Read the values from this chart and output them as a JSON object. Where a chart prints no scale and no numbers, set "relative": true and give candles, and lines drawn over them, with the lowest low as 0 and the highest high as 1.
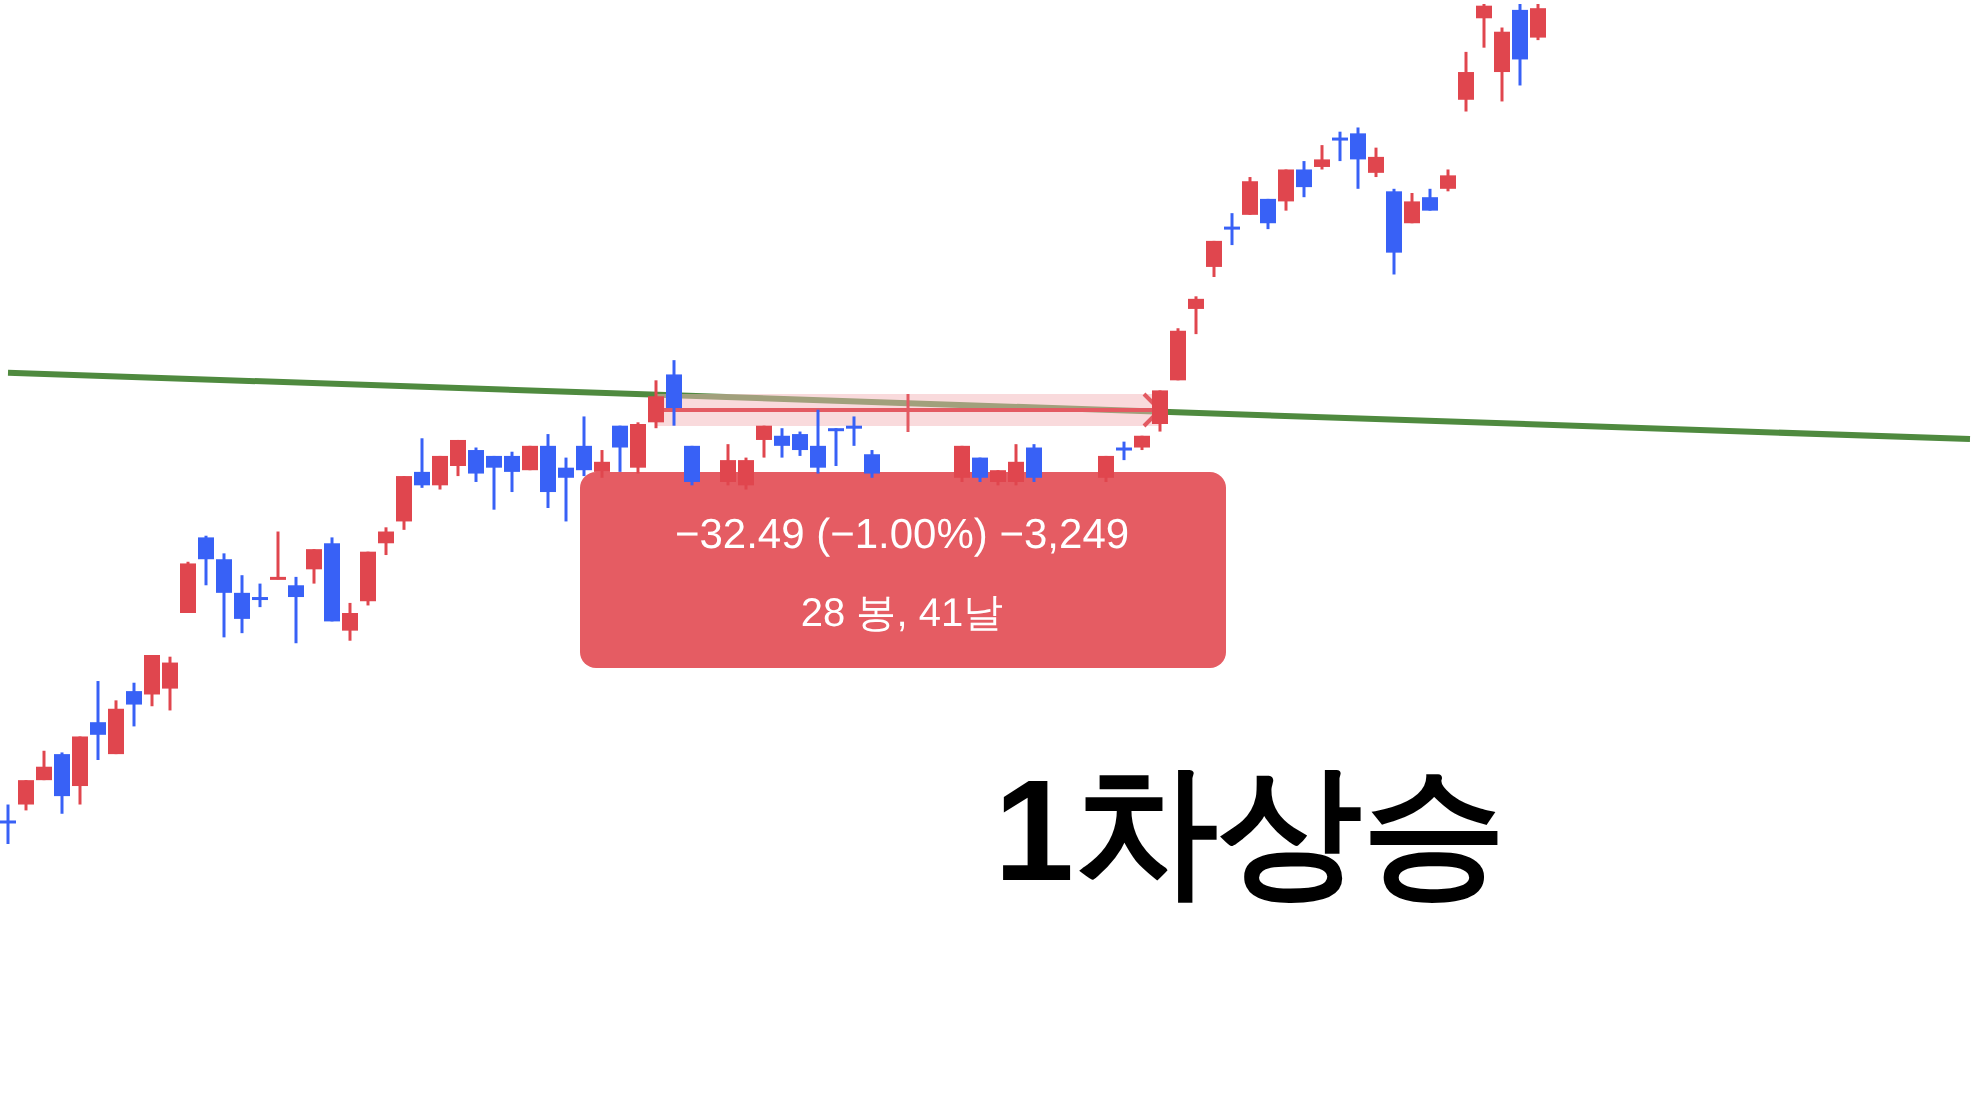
{
  "chart_data": {
    "type": "candlestick",
    "relative": true,
    "colors": [
      "#3861f6",
      "#e0464e",
      "#e0464e",
      "#3861f6",
      "#e0464e",
      "#3861f6",
      "#e0464e",
      "#3861f6",
      "#e0464e",
      "#e0464e",
      "#e0464e",
      "#3861f6",
      "#3861f6",
      "#3861f6",
      "#3861f6",
      "#e0464e",
      "#3861f6",
      "#e0464e",
      "#3861f6",
      "#e0464e",
      "#e0464e",
      "#e0464e",
      "#e0464e",
      "#3861f6",
      "#e0464e",
      "#e0464e",
      "#3861f6",
      "#3861f6",
      "#3861f6",
      "#e0464e",
      "#3861f6",
      "#3861f6",
      "#3861f6",
      "#e0464e",
      "#3861f6",
      "#e0464e",
      "#e0464e",
      "#3861f6",
      "#3861f6",
      null,
      "#e0464e",
      "#e0464e",
      "#e0464e",
      "#3861f6",
      "#3861f6",
      "#3861f6",
      "#3861f6",
      "#3861f6",
      "#3861f6",
      null,
      null,
      null,
      null,
      "#e0464e",
      "#3861f6",
      "#e0464e",
      "#e0464e",
      "#3861f6",
      null,
      null,
      null,
      "#e0464e",
      "#3861f6",
      "#e0464e",
      "#e0464e",
      "#e0464e",
      "#e0464e",
      "#e0464e",
      "#3861f6",
      "#e0464e",
      "#3861f6",
      "#e0464e",
      "#3861f6",
      "#e0464e",
      "#3861f6",
      "#3861f6",
      "#e0464e",
      "#3861f6",
      "#e0464e",
      "#3861f6",
      "#e0464e",
      "#e0464e",
      "#e0464e",
      "#e0464e",
      "#3861f6",
      "#e0464e",
      null,
      null,
      null,
      null,
      null,
      null,
      null,
      null,
      null,
      null,
      null,
      null,
      null,
      null,
      null,
      null,
      null,
      null,
      null,
      null,
      null,
      null,
      null,
      null
    ],
    "categories": [
      null,
      null,
      null,
      null,
      null,
      null,
      null,
      null,
      null,
      null,
      null,
      null,
      null,
      null,
      null,
      null,
      null,
      null,
      null,
      null,
      null,
      null,
      null,
      null,
      null,
      null,
      null,
      null,
      null,
      null,
      null,
      null,
      null,
      null,
      null,
      null,
      null,
      null,
      null,
      null,
      null,
      null,
      null,
      null,
      null,
      null,
      null,
      null,
      null,
      null,
      null,
      null,
      null,
      null,
      null,
      null,
      null,
      null,
      null,
      null,
      null,
      null,
      null,
      null,
      null,
      null,
      null,
      null,
      null,
      null,
      null,
      null,
      null,
      null,
      null,
      null,
      null,
      null,
      null,
      null,
      null,
      null,
      null,
      null,
      null,
      null,
      null,
      null,
      null,
      null,
      null,
      null,
      null,
      null,
      null,
      null,
      null,
      null,
      null,
      null,
      null,
      null,
      null,
      null,
      null,
      null,
      null,
      null,
      null,
      null
    ],
    "ohlc": [
      [
        0.028,
        0.047,
        0,
        0.027
      ],
      [
        0.047,
        0.076,
        0.04,
        0.076
      ],
      [
        0.076,
        0.111,
        0.076,
        0.092
      ],
      [
        0.107,
        0.109,
        0.036,
        0.057
      ],
      [
        0.069,
        0.128,
        0.047,
        0.128
      ],
      [
        0.145,
        0.194,
        0.1,
        0.13
      ],
      [
        0.107,
        0.171,
        0.107,
        0.161
      ],
      [
        0.182,
        0.192,
        0.14,
        0.166
      ],
      [
        0.178,
        0.225,
        0.164,
        0.225
      ],
      [
        0.185,
        0.223,
        0.159,
        0.216
      ],
      [
        0.275,
        0.336,
        0.275,
        0.334
      ],
      [
        0.365,
        0.367,
        0.308,
        0.339
      ],
      [
        0.339,
        0.346,
        0.246,
        0.299
      ],
      [
        0.299,
        0.32,
        0.251,
        0.268
      ],
      [
        0.294,
        0.31,
        0.282,
        0.293
      ],
      [
        0.315,
        0.372,
        0.315,
        0.318
      ],
      [
        0.308,
        0.318,
        0.239,
        0.294
      ],
      [
        0.327,
        0.351,
        0.31,
        0.351
      ],
      [
        0.358,
        0.365,
        0.265,
        0.265
      ],
      [
        0.254,
        0.287,
        0.242,
        0.275
      ],
      [
        0.289,
        0.348,
        0.284,
        0.348
      ],
      [
        0.358,
        0.377,
        0.344,
        0.372
      ],
      [
        0.384,
        0.438,
        0.374,
        0.438
      ],
      [
        0.443,
        0.483,
        0.424,
        0.427
      ],
      [
        0.427,
        0.462,
        0.422,
        0.462
      ],
      [
        0.45,
        0.481,
        0.438,
        0.481
      ],
      [
        0.469,
        0.472,
        0.431,
        0.441
      ],
      [
        0.462,
        0.462,
        0.398,
        0.448
      ],
      [
        0.462,
        0.467,
        0.419,
        0.443
      ],
      [
        0.445,
        0.474,
        0.445,
        0.474
      ],
      [
        0.474,
        0.488,
        0.4,
        0.419
      ],
      [
        0.448,
        0.46,
        0.384,
        0.436
      ],
      [
        0.474,
        0.509,
        0.438,
        0.445
      ],
      [
        0.443,
        0.469,
        0.436,
        0.455
      ],
      [
        0.498,
        0.498,
        0.443,
        0.472
      ],
      [
        0.448,
        0.502,
        0.441,
        0.5
      ],
      [
        0.502,
        0.552,
        0.495,
        0.533
      ],
      [
        0.559,
        0.576,
        0.498,
        0.519
      ],
      [
        0.474,
        0.474,
        0.427,
        0.431
      ],
      null,
      [
        0.431,
        0.476,
        0.427,
        0.457
      ],
      [
        0.427,
        0.46,
        0.422,
        0.457
      ],
      [
        0.481,
        0.498,
        0.46,
        0.498
      ],
      [
        0.486,
        0.495,
        0.46,
        0.474
      ],
      [
        0.488,
        0.491,
        0.462,
        0.469
      ],
      [
        0.474,
        0.517,
        0.441,
        0.448
      ],
      [
        0.495,
        0.495,
        0.45,
        0.494
      ],
      [
        0.498,
        0.509,
        0.474,
        0.497
      ],
      [
        0.464,
        0.469,
        0.436,
        0.441
      ],
      null,
      null,
      null,
      null,
      [
        0.436,
        0.474,
        0.431,
        0.474
      ],
      [
        0.46,
        0.46,
        0.431,
        0.436
      ],
      [
        0.431,
        0.445,
        0.427,
        0.445
      ],
      [
        0.431,
        0.476,
        0.427,
        0.455
      ],
      [
        0.472,
        0.476,
        0.431,
        0.436
      ],
      null,
      null,
      null,
      [
        0.436,
        0.462,
        0.431,
        0.462
      ],
      [
        0.472,
        0.479,
        0.457,
        0.471
      ],
      [
        0.472,
        0.486,
        0.469,
        0.486
      ],
      [
        0.5,
        0.54,
        0.491,
        0.54
      ],
      [
        0.552,
        0.614,
        0.552,
        0.611
      ],
      [
        0.637,
        0.652,
        0.607,
        0.649
      ],
      [
        0.687,
        0.718,
        0.675,
        0.718
      ],
      [
        0.735,
        0.751,
        0.713,
        0.733
      ],
      [
        0.749,
        0.794,
        0.749,
        0.789
      ],
      [
        0.768,
        0.768,
        0.732,
        0.739
      ],
      [
        0.765,
        0.803,
        0.754,
        0.803
      ],
      [
        0.803,
        0.813,
        0.77,
        0.782
      ],
      [
        0.806,
        0.832,
        0.803,
        0.815
      ],
      [
        0.841,
        0.848,
        0.813,
        0.84
      ],
      [
        0.846,
        0.853,
        0.78,
        0.815
      ],
      [
        0.799,
        0.829,
        0.794,
        0.818
      ],
      [
        0.777,
        0.78,
        0.678,
        0.704
      ],
      [
        0.739,
        0.775,
        0.739,
        0.765
      ],
      [
        0.77,
        0.78,
        0.754,
        0.754
      ],
      [
        0.78,
        0.803,
        0.777,
        0.796
      ],
      [
        0.886,
        0.943,
        0.872,
        0.919
      ],
      [
        0.983,
        1,
        0.948,
        0.998
      ],
      [
        0.919,
        0.972,
        0.884,
        0.967
      ],
      [
        0.993,
        1,
        0.903,
        0.934
      ],
      [
        0.96,
        1,
        0.957,
        0.995
      ],
      null,
      null,
      null,
      null,
      null,
      null,
      null,
      null,
      null,
      null,
      null,
      null,
      null,
      null,
      null,
      null,
      null,
      null,
      null,
      null,
      null,
      null,
      null,
      null
    ],
    "series": [
      {
        "type": "line",
        "color": "#4f8a3f",
        "values": [
          0.561,
          null,
          null,
          null,
          null,
          null,
          null,
          null,
          null,
          null,
          null,
          null,
          null,
          null,
          null,
          null,
          null,
          null,
          null,
          null,
          null,
          null,
          null,
          null,
          null,
          null,
          null,
          null,
          null,
          null,
          null,
          null,
          null,
          null,
          null,
          null,
          null,
          null,
          null,
          null,
          null,
          null,
          null,
          null,
          null,
          null,
          null,
          null,
          null,
          null,
          null,
          null,
          null,
          null,
          null,
          null,
          null,
          null,
          null,
          null,
          null,
          null,
          null,
          null,
          null,
          null,
          null,
          null,
          null,
          null,
          null,
          null,
          null,
          null,
          null,
          null,
          null,
          null,
          null,
          null,
          null,
          null,
          null,
          null,
          null,
          null,
          null,
          null,
          null,
          null,
          null,
          null,
          null,
          null,
          null,
          null,
          null,
          null,
          null,
          null,
          null,
          null,
          null,
          null,
          null,
          null,
          null,
          null,
          null,
          0.482
        ]
      }
    ],
    "annotations": [
      "−32.49 (−1.00%) −3,249",
      "28 봉, 41날",
      "1차상승"
    ]
  }
}
